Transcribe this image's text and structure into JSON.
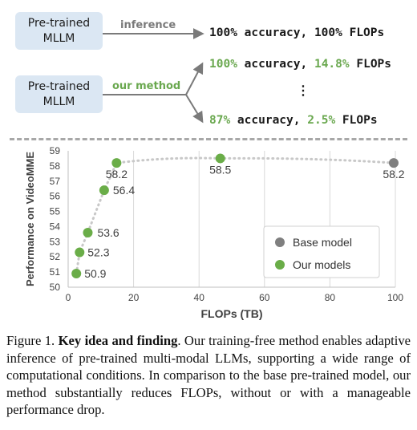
{
  "diagram": {
    "box1": {
      "line1": "Pre-trained",
      "line2": "MLLM"
    },
    "box2": {
      "line1": "Pre-trained",
      "line2": "MLLM"
    },
    "inference_label": "inference",
    "method_label": "our method",
    "result_base": {
      "acc": "100% accuracy,",
      "flops": "100% FLOPs"
    },
    "result_1": {
      "acc_val": "100%",
      "acc_word": " accuracy,",
      "flops_val": "14.8%",
      "flops_word": " FLOPs"
    },
    "ellipsis": "⋮",
    "result_2": {
      "acc_val": "87%",
      "acc_word": " accuracy,",
      "flops_val": "2.5%",
      "flops_word": " FLOPs"
    },
    "colors": {
      "box": "#dbe7f3",
      "accent_green": "#6aa84f",
      "arrow": "#7a7a7a"
    }
  },
  "chart_data": {
    "type": "scatter",
    "xlabel": "FLOPs (TB)",
    "ylabel": "Performance on VideoMME",
    "xlim": [
      0,
      100
    ],
    "ylim": [
      50,
      59
    ],
    "xticks": [
      0,
      20,
      40,
      60,
      80,
      100
    ],
    "yticks": [
      50,
      51,
      52,
      53,
      54,
      55,
      56,
      57,
      58,
      59
    ],
    "grid": "vertical",
    "legend_position": "bottom-right",
    "series": [
      {
        "name": "Base model",
        "color": "#7f7f7f",
        "points": [
          {
            "x": 99.5,
            "y": 58.2,
            "label": "58.2"
          }
        ]
      },
      {
        "name": "Our models",
        "color": "#6aad48",
        "points": [
          {
            "x": 2.5,
            "y": 50.9,
            "label": "50.9"
          },
          {
            "x": 3.5,
            "y": 52.3,
            "label": "52.3"
          },
          {
            "x": 6.0,
            "y": 53.6,
            "label": "53.6"
          },
          {
            "x": 11.0,
            "y": 56.4,
            "label": "56.4"
          },
          {
            "x": 14.8,
            "y": 58.2,
            "label": "58.2"
          },
          {
            "x": 46.5,
            "y": 58.5,
            "label": "58.5"
          }
        ]
      }
    ]
  },
  "caption": {
    "prefix": "Figure 1. ",
    "bold": "Key idea and finding",
    "text": ". Our training-free method enables adaptive inference of pre-trained multi-modal LLMs, supporting a wide range of computational conditions.  In comparison to the base pre-trained model, our method substantially reduces FLOPs, without or with a manageable performance drop."
  }
}
